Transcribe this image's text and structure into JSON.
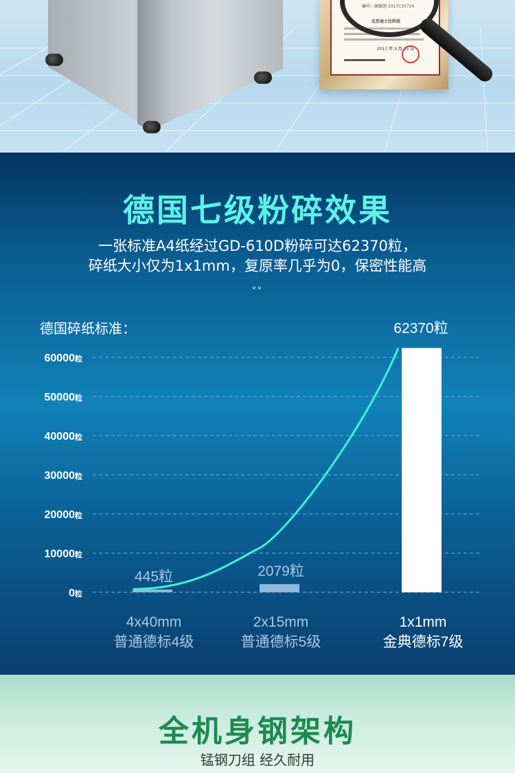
{
  "certificate": {
    "number_line": "编号：国保测 2017CS5720",
    "company_line": "北京迪士比科技",
    "date_line": "2017 年 9 月 25 日"
  },
  "section": {
    "heading": "德国七级粉碎效果",
    "desc_line1": "一张标准A4纸经过GD-610D粉碎可达62370粒，",
    "desc_line2": "碎纸大小仅为1x1mm，复原率几乎为0，保密性能高",
    "chevron": "˅˅",
    "standard_label": "德国碎纸标准："
  },
  "chart_data": {
    "type": "bar",
    "title": "",
    "ylim": [
      0,
      60000
    ],
    "y_ticks": [
      "0粒",
      "10000粒",
      "20000粒",
      "30000粒",
      "40000粒",
      "50000粒",
      "60000粒"
    ],
    "grid": true,
    "categories": [
      {
        "size": "4x40mm",
        "level": "普通德标4级"
      },
      {
        "size": "2x15mm",
        "level": "普通德标5级"
      },
      {
        "size": "1x1mm",
        "level": "金典德标7级"
      }
    ],
    "values": [
      445,
      2079,
      62370
    ],
    "value_labels": [
      "445粒",
      "2079粒",
      "62370粒"
    ],
    "colors": {
      "bar_normal": "#8fb9dd",
      "bar_highlight": "#ffffff",
      "curve": "#3ff0d6",
      "grid": "#7fb3d9",
      "label_normal": "#a9c8e6",
      "label_highlight": "#ffffff"
    }
  },
  "footer": {
    "title": "全机身钢架构",
    "subtitle": "锰钢刀组 经久耐用"
  }
}
